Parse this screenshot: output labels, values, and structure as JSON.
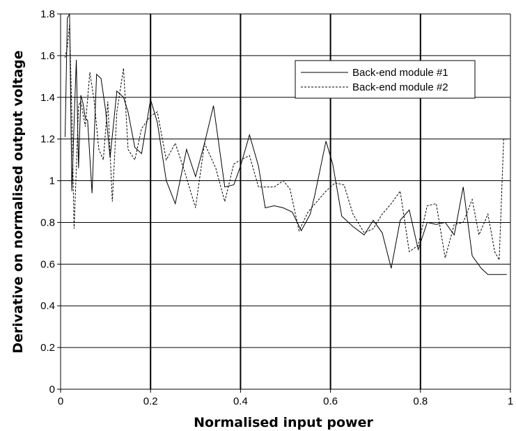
{
  "chart_data": {
    "type": "line",
    "title": "",
    "xlabel": "Normalised input power",
    "ylabel": "Derivative on normalised output voltage",
    "xlim": [
      0,
      1
    ],
    "ylim": [
      0,
      1.8
    ],
    "x_ticks": [
      0,
      0.2,
      0.4,
      0.6,
      0.8,
      1
    ],
    "x_tick_labels": [
      "0",
      "0.2",
      "0.4",
      "0.6",
      "0.8",
      "1"
    ],
    "y_ticks": [
      0,
      0.2,
      0.4,
      0.6,
      0.8,
      1,
      1.2,
      1.4,
      1.6,
      1.8
    ],
    "y_tick_labels": [
      "0",
      "0.2",
      "0.4",
      "0.6",
      "0.8",
      "1",
      "1.2",
      "1.4",
      "1.6",
      "1.8"
    ],
    "grid": "horizontal and vertical major gridlines",
    "legend_position": "top-right",
    "series": [
      {
        "name": "Back-end module #1",
        "style": "solid",
        "color": "#000000",
        "x": [
          0.01,
          0.015,
          0.02,
          0.025,
          0.03,
          0.035,
          0.04,
          0.045,
          0.05,
          0.055,
          0.06,
          0.07,
          0.08,
          0.09,
          0.1,
          0.11,
          0.125,
          0.14,
          0.15,
          0.165,
          0.18,
          0.2,
          0.215,
          0.235,
          0.255,
          0.28,
          0.3,
          0.32,
          0.34,
          0.365,
          0.385,
          0.4,
          0.42,
          0.44,
          0.455,
          0.475,
          0.495,
          0.515,
          0.535,
          0.555,
          0.565,
          0.59,
          0.605,
          0.625,
          0.65,
          0.675,
          0.695,
          0.715,
          0.735,
          0.755,
          0.775,
          0.795,
          0.815,
          0.835,
          0.855,
          0.875,
          0.895,
          0.915,
          0.935,
          0.95,
          0.965,
          0.975,
          0.985,
          0.992
        ],
        "y": [
          1.21,
          1.78,
          1.8,
          0.95,
          1.28,
          1.58,
          1.06,
          1.41,
          1.37,
          1.3,
          1.29,
          0.94,
          1.51,
          1.49,
          1.34,
          1.11,
          1.43,
          1.4,
          1.33,
          1.16,
          1.13,
          1.39,
          1.28,
          1.0,
          0.89,
          1.15,
          1.02,
          1.18,
          1.36,
          0.97,
          0.98,
          1.07,
          1.22,
          1.07,
          0.87,
          0.88,
          0.87,
          0.85,
          0.76,
          0.84,
          0.93,
          1.19,
          1.08,
          0.83,
          0.78,
          0.74,
          0.81,
          0.75,
          0.58,
          0.81,
          0.86,
          0.67,
          0.8,
          0.79,
          0.8,
          0.74,
          0.97,
          0.64,
          0.58,
          0.55,
          0.55,
          0.55,
          0.55,
          0.55
        ],
        "y_note": ""
      },
      {
        "name": "Back-end module #2",
        "style": "dashed",
        "color": "#000000",
        "x": [
          0.01,
          0.015,
          0.02,
          0.025,
          0.03,
          0.035,
          0.04,
          0.045,
          0.055,
          0.065,
          0.075,
          0.085,
          0.095,
          0.105,
          0.115,
          0.125,
          0.14,
          0.15,
          0.165,
          0.18,
          0.2,
          0.215,
          0.235,
          0.255,
          0.275,
          0.3,
          0.32,
          0.345,
          0.365,
          0.385,
          0.4,
          0.42,
          0.44,
          0.455,
          0.475,
          0.495,
          0.51,
          0.53,
          0.55,
          0.57,
          0.59,
          0.61,
          0.63,
          0.65,
          0.675,
          0.695,
          0.715,
          0.735,
          0.755,
          0.775,
          0.795,
          0.815,
          0.835,
          0.855,
          0.875,
          0.895,
          0.915,
          0.93,
          0.95,
          0.965,
          0.975,
          0.985,
          0.992
        ],
        "y": [
          1.59,
          1.64,
          1.75,
          1.31,
          0.77,
          1.06,
          1.36,
          1.38,
          1.26,
          1.52,
          1.38,
          1.15,
          1.1,
          1.38,
          0.9,
          1.33,
          1.54,
          1.15,
          1.1,
          1.25,
          1.31,
          1.33,
          1.1,
          1.18,
          1.05,
          0.87,
          1.18,
          1.06,
          0.9,
          1.08,
          1.1,
          1.12,
          0.97,
          0.97,
          0.97,
          1.0,
          0.96,
          0.76,
          0.85,
          0.9,
          0.95,
          0.99,
          0.98,
          0.84,
          0.75,
          0.77,
          0.84,
          0.89,
          0.95,
          0.66,
          0.69,
          0.88,
          0.89,
          0.63,
          0.79,
          0.8,
          0.91,
          0.74,
          0.84,
          0.66,
          0.62,
          1.2,
          1.2
        ],
        "y_note": ""
      }
    ]
  }
}
